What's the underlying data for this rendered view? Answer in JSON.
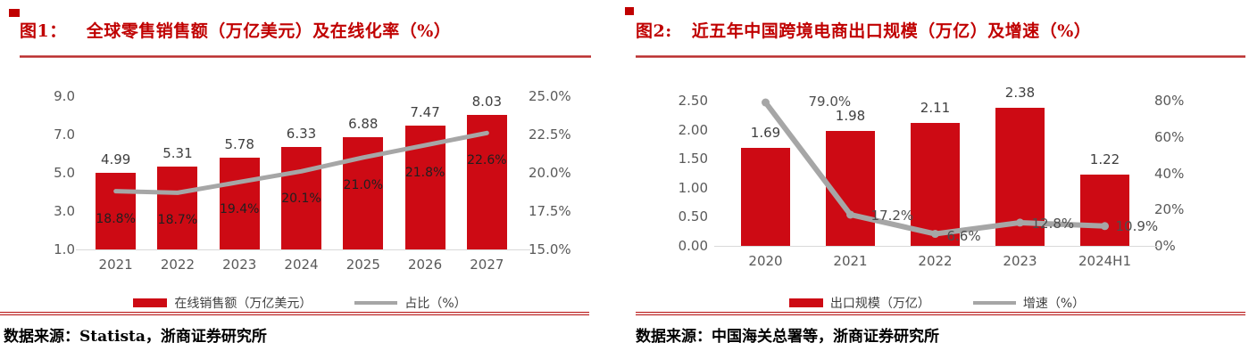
{
  "colors": {
    "accent_red": "#c00000",
    "bar_red": "#cd0a14",
    "line_gray": "#a6a6a6",
    "axis_text": "#595959"
  },
  "figures": [
    {
      "title_label": "图1：",
      "title_text": "全球零售销售额（万亿美元）及在线化率（%）",
      "legend": [
        {
          "type": "bar",
          "label": "在线销售额（万亿美元）"
        },
        {
          "type": "line",
          "label": "占比（%）"
        }
      ],
      "source": "数据来源：Statista，浙商证券研究所"
    },
    {
      "title_label": "图2:",
      "title_text": "近五年中国跨境电商出口规模（万亿）及增速（%）",
      "legend": [
        {
          "type": "bar",
          "label": "出口规模（万亿）"
        },
        {
          "type": "line",
          "label": "增速（%）"
        }
      ],
      "source": "数据来源：中国海关总署等，浙商证券研究所"
    }
  ],
  "chart_data": [
    {
      "type": "bar+line",
      "title": "全球零售销售额（万亿美元）及在线化率（%）",
      "categories": [
        "2021",
        "2022",
        "2023",
        "2024",
        "2025",
        "2026",
        "2027"
      ],
      "series": [
        {
          "name": "在线销售额（万亿美元）",
          "type": "bar",
          "values": [
            4.99,
            5.31,
            5.78,
            6.33,
            6.88,
            7.47,
            8.03
          ]
        },
        {
          "name": "占比（%）",
          "type": "line",
          "values": [
            18.8,
            18.7,
            19.4,
            20.1,
            21.0,
            21.8,
            22.6
          ]
        }
      ],
      "bar_labels": [
        "4.99",
        "5.31",
        "5.78",
        "6.33",
        "6.88",
        "7.47",
        "8.03"
      ],
      "line_labels": [
        "18.8%",
        "18.7%",
        "19.4%",
        "20.1%",
        "21.0%",
        "21.8%",
        "22.6%"
      ],
      "left_axis": {
        "ticks": [
          "9.0",
          "7.0",
          "5.0",
          "3.0",
          "1.0"
        ],
        "range": [
          1,
          9
        ]
      },
      "right_axis": {
        "ticks": [
          "25.0%",
          "22.5%",
          "20.0%",
          "17.5%",
          "15.0%"
        ],
        "range": [
          15,
          25
        ]
      },
      "grid": false,
      "legend_position": "bottom"
    },
    {
      "type": "bar+line",
      "title": "近五年中国跨境电商出口规模（万亿）及增速（%）",
      "categories": [
        "2020",
        "2021",
        "2022",
        "2023",
        "2024H1"
      ],
      "series": [
        {
          "name": "出口规模（万亿）",
          "type": "bar",
          "values": [
            1.69,
            1.98,
            2.11,
            2.38,
            1.22
          ]
        },
        {
          "name": "增速（%）",
          "type": "line",
          "values": [
            79.0,
            17.2,
            6.6,
            12.8,
            10.9
          ]
        }
      ],
      "bar_labels": [
        "1.69",
        "1.98",
        "2.11",
        "2.38",
        "1.22"
      ],
      "line_labels": [
        "79.0%",
        "17.2%",
        "6.6%",
        "12.8%",
        "10.9%"
      ],
      "left_axis": {
        "ticks": [
          "2.50",
          "2.00",
          "1.50",
          "1.00",
          "0.50",
          "0.00"
        ],
        "range": [
          0,
          2.5
        ]
      },
      "right_axis": {
        "ticks": [
          "80%",
          "60%",
          "40%",
          "20%",
          "0%"
        ],
        "range": [
          0,
          80
        ]
      },
      "grid": false,
      "legend_position": "bottom"
    }
  ]
}
